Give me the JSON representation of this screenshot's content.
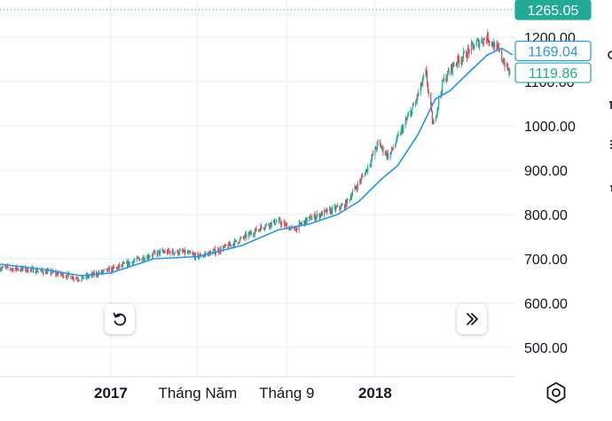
{
  "chart_data": {
    "type": "candlestick",
    "title": "",
    "xlabel": "",
    "ylabel": "",
    "ylim": [
      445,
      1275
    ],
    "x_range": [
      "2016-08-01",
      "2018-07-10"
    ],
    "y_ticks": [
      "1200.00",
      "1100.00",
      "1000.00",
      "900.00",
      "800.00",
      "700.00",
      "600.00",
      "500.00"
    ],
    "x_ticks": [
      {
        "label": "2017",
        "date": "2017-01-01",
        "bold": true
      },
      {
        "label": "Tháng Năm",
        "date": "2017-05-01",
        "bold": false
      },
      {
        "label": "Tháng 9",
        "date": "2017-09-01",
        "bold": false
      },
      {
        "label": "2018",
        "date": "2018-01-01",
        "bold": true
      }
    ],
    "grid": true,
    "price_trend": [
      [
        "2016-08-01",
        680
      ],
      [
        "2016-09-15",
        675
      ],
      [
        "2016-10-25",
        665
      ],
      [
        "2016-11-20",
        655
      ],
      [
        "2016-12-10",
        665
      ],
      [
        "2017-01-10",
        680
      ],
      [
        "2017-02-10",
        700
      ],
      [
        "2017-03-10",
        715
      ],
      [
        "2017-04-10",
        715
      ],
      [
        "2017-05-01",
        705
      ],
      [
        "2017-06-01",
        720
      ],
      [
        "2017-07-01",
        745
      ],
      [
        "2017-08-01",
        775
      ],
      [
        "2017-08-20",
        785
      ],
      [
        "2017-09-10",
        765
      ],
      [
        "2017-10-01",
        790
      ],
      [
        "2017-10-25",
        805
      ],
      [
        "2017-11-20",
        820
      ],
      [
        "2017-12-20",
        900
      ],
      [
        "2018-01-05",
        960
      ],
      [
        "2018-01-20",
        930
      ],
      [
        "2018-02-05",
        985
      ],
      [
        "2018-02-25",
        1050
      ],
      [
        "2018-03-12",
        1120
      ],
      [
        "2018-03-22",
        1000
      ],
      [
        "2018-04-05",
        1100
      ],
      [
        "2018-04-20",
        1140
      ],
      [
        "2018-05-05",
        1160
      ],
      [
        "2018-05-20",
        1185
      ],
      [
        "2018-06-05",
        1200
      ],
      [
        "2018-06-20",
        1170
      ],
      [
        "2018-07-05",
        1120
      ]
    ],
    "ma_line": [
      [
        "2016-08-01",
        688
      ],
      [
        "2016-10-01",
        676
      ],
      [
        "2016-11-20",
        662
      ],
      [
        "2017-01-01",
        668
      ],
      [
        "2017-03-01",
        700
      ],
      [
        "2017-05-01",
        705
      ],
      [
        "2017-07-01",
        730
      ],
      [
        "2017-08-20",
        765
      ],
      [
        "2017-10-01",
        778
      ],
      [
        "2017-11-10",
        800
      ],
      [
        "2017-12-10",
        830
      ],
      [
        "2018-01-10",
        880
      ],
      [
        "2018-02-01",
        910
      ],
      [
        "2018-03-01",
        980
      ],
      [
        "2018-03-25",
        1060
      ],
      [
        "2018-04-15",
        1080
      ],
      [
        "2018-05-10",
        1120
      ],
      [
        "2018-06-05",
        1160
      ],
      [
        "2018-06-25",
        1175
      ],
      [
        "2018-07-10",
        1160
      ]
    ],
    "price_tags": [
      {
        "label": "1265.05",
        "value": 1265.05,
        "style": "filled",
        "color": "#22ab94"
      },
      {
        "label": "1169.04",
        "value": 1169.04,
        "style": "outline",
        "color": "#2196f3"
      },
      {
        "label": "1119.86",
        "value": 1119.86,
        "style": "outline",
        "color": "#22ab94"
      }
    ],
    "colors": {
      "up": "#22ab94",
      "down": "#f23645",
      "ma": "#2196f3",
      "grid": "#eceef2",
      "dotted": "#22ab94"
    }
  },
  "controls": {
    "reset_icon": "rotate-ccw-icon",
    "scroll_icon": "chevrons-right-icon",
    "settings_icon": "gear-icon"
  }
}
